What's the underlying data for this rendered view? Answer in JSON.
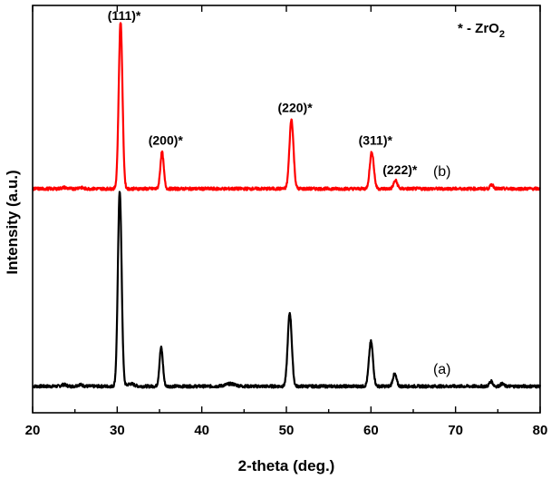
{
  "chart_data": {
    "type": "line",
    "title": "",
    "xlabel": "2-theta (deg.)",
    "ylabel": "Intensity (a.u.)",
    "xlim": [
      20,
      80
    ],
    "xticks": [
      20,
      30,
      40,
      50,
      60,
      70,
      80
    ],
    "ylim": [
      0,
      1.0
    ],
    "y_ticks_shown": false,
    "grid": false,
    "legend_note": {
      "prefix": "* - ZrO",
      "subscript": "2",
      "placement": "top-right"
    },
    "series": [
      {
        "name": "(a)",
        "color": "#000000",
        "baseline": 0.065,
        "noise": 0.0035,
        "peaks": [
          {
            "x": 23.7,
            "h": 0.004,
            "w": 0.3
          },
          {
            "x": 25.6,
            "h": 0.004,
            "w": 0.3
          },
          {
            "x": 30.3,
            "h": 0.48,
            "w": 0.22
          },
          {
            "x": 31.6,
            "h": 0.006,
            "w": 0.4
          },
          {
            "x": 35.2,
            "h": 0.095,
            "w": 0.2
          },
          {
            "x": 43.4,
            "h": 0.006,
            "w": 0.6
          },
          {
            "x": 50.4,
            "h": 0.18,
            "w": 0.24
          },
          {
            "x": 60.0,
            "h": 0.11,
            "w": 0.24
          },
          {
            "x": 62.8,
            "h": 0.03,
            "w": 0.22
          },
          {
            "x": 74.2,
            "h": 0.012,
            "w": 0.2
          },
          {
            "x": 75.5,
            "h": 0.006,
            "w": 0.2
          }
        ]
      },
      {
        "name": "(b)",
        "color": "#ff0000",
        "baseline": 0.55,
        "noise": 0.0035,
        "peaks": [
          {
            "x": 23.7,
            "h": 0.003,
            "w": 0.3
          },
          {
            "x": 25.6,
            "h": 0.003,
            "w": 0.3
          },
          {
            "x": 30.4,
            "h": 0.41,
            "w": 0.22
          },
          {
            "x": 35.3,
            "h": 0.09,
            "w": 0.2
          },
          {
            "x": 50.6,
            "h": 0.17,
            "w": 0.24
          },
          {
            "x": 60.1,
            "h": 0.09,
            "w": 0.24
          },
          {
            "x": 62.9,
            "h": 0.02,
            "w": 0.22
          },
          {
            "x": 74.3,
            "h": 0.01,
            "w": 0.2
          }
        ]
      }
    ],
    "annotations": [
      {
        "text": "(111)*",
        "x": 30.4
      },
      {
        "text": "(200)*",
        "x": 35.3
      },
      {
        "text": "(220)*",
        "x": 50.6
      },
      {
        "text": "(311)*",
        "x": 60.1
      },
      {
        "text": "(222)*",
        "x": 63.0
      }
    ]
  }
}
